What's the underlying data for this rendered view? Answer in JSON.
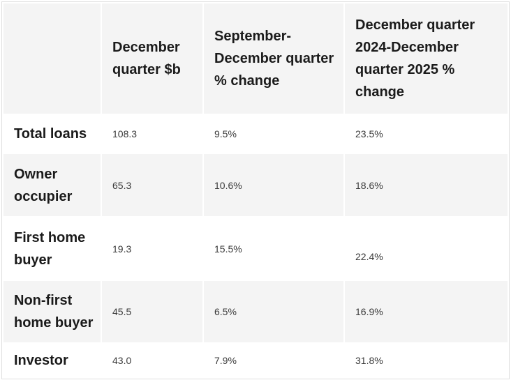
{
  "colors": {
    "stripe_background": "#f4f4f4",
    "table_border": "#dfdfdf",
    "label_text": "#1a1a1a",
    "value_text": "#3a3a3a"
  },
  "table": {
    "columns": [
      "",
      "December quarter $b",
      "September-December quarter % change",
      "December quarter 2024-December quarter 2025 % change"
    ],
    "rows": [
      {
        "label": "Total loans",
        "values": [
          "108.3",
          "9.5%",
          "23.5%"
        ]
      },
      {
        "label": "Owner occupier",
        "values": [
          "65.3",
          "10.6%",
          "18.6%"
        ]
      },
      {
        "label": "First home buyer",
        "values": [
          "19.3",
          "15.5%",
          "22.4%"
        ]
      },
      {
        "label": "Non-first home buyer",
        "values": [
          "45.5",
          "6.5%",
          "16.9%"
        ]
      },
      {
        "label": "Investor",
        "values": [
          "43.0",
          "7.9%",
          "31.8%"
        ]
      }
    ]
  },
  "chart_data": {
    "type": "table",
    "title": "",
    "categories": [
      "Total loans",
      "Owner occupier",
      "First home buyer",
      "Non-first home buyer",
      "Investor"
    ],
    "series": [
      {
        "name": "December quarter $b",
        "values": [
          108.3,
          65.3,
          19.3,
          45.5,
          43.0
        ]
      },
      {
        "name": "September-December quarter % change",
        "values": [
          9.5,
          10.6,
          15.5,
          6.5,
          7.9
        ]
      },
      {
        "name": "December quarter 2024-December quarter 2025 % change",
        "values": [
          23.5,
          18.6,
          22.4,
          16.9,
          31.8
        ]
      }
    ]
  }
}
